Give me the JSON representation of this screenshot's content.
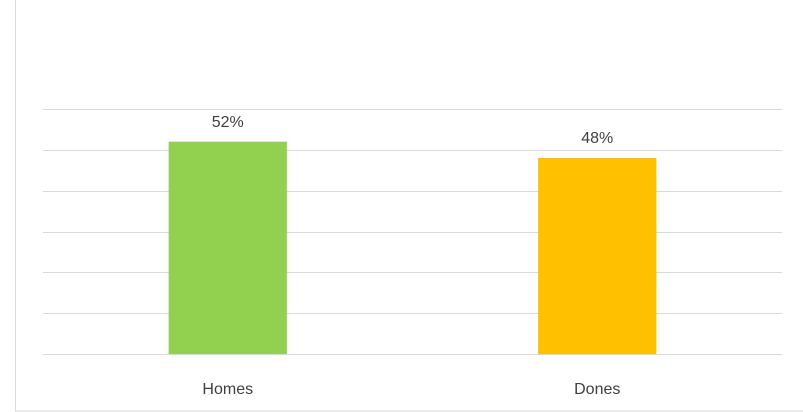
{
  "chart_data": {
    "type": "bar",
    "categories": [
      "Homes",
      "Dones"
    ],
    "values": [
      52,
      48
    ],
    "value_labels": [
      "52%",
      "48%"
    ],
    "colors": [
      "#92d050",
      "#ffc000"
    ],
    "ylim": [
      0,
      60
    ],
    "yticks": [
      0,
      10,
      20,
      30,
      40,
      50,
      60
    ],
    "grid": true
  }
}
